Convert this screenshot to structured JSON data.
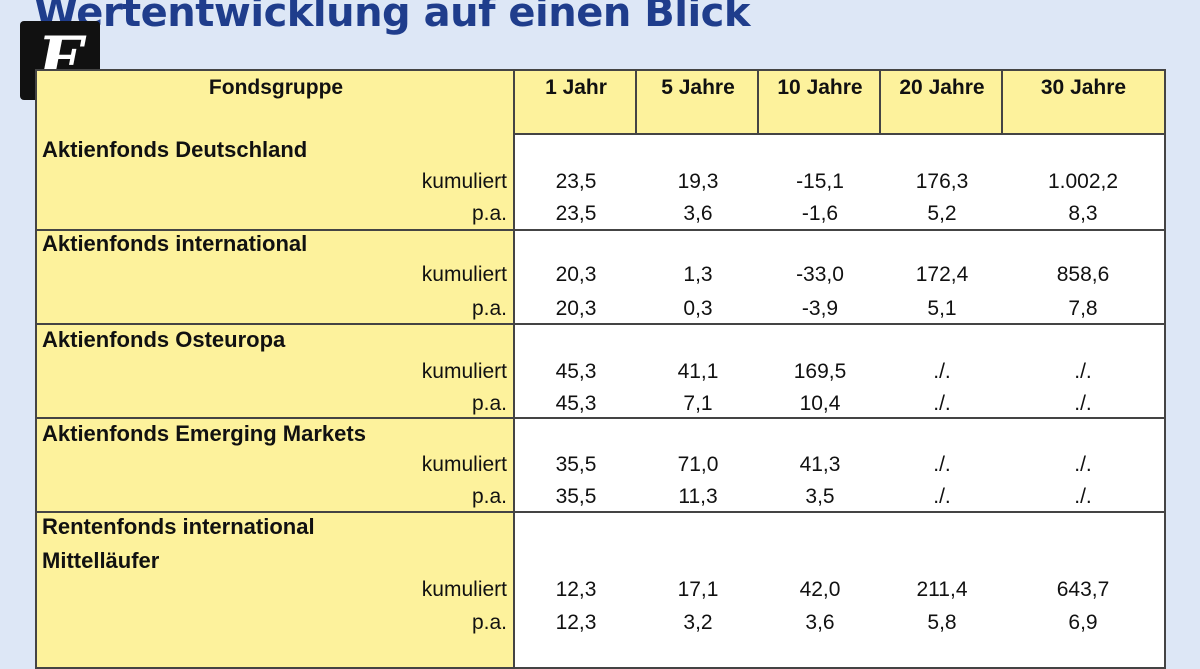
{
  "title": "Wertentwicklung auf einen Blick",
  "logo": {
    "letter": "F"
  },
  "table": {
    "headers": [
      "Fondsgruppe",
      "1 Jahr",
      "5 Jahre",
      "10 Jahre",
      "20 Jahre",
      "30 Jahre"
    ],
    "groups": [
      {
        "name": "Aktienfonds Deutschland",
        "rows": [
          {
            "label": "kumuliert",
            "values": [
              "23,5",
              "19,3",
              "-15,1",
              "176,3",
              "1.002,2"
            ]
          },
          {
            "label": "p.a.",
            "values": [
              "23,5",
              "3,6",
              "-1,6",
              "5,2",
              "8,3"
            ]
          }
        ]
      },
      {
        "name": "Aktienfonds international",
        "rows": [
          {
            "label": "kumuliert",
            "values": [
              "20,3",
              "1,3",
              "-33,0",
              "172,4",
              "858,6"
            ]
          },
          {
            "label": "p.a.",
            "values": [
              "20,3",
              "0,3",
              "-3,9",
              "5,1",
              "7,8"
            ]
          }
        ]
      },
      {
        "name": "Aktienfonds Osteuropa",
        "rows": [
          {
            "label": "kumuliert",
            "values": [
              "45,3",
              "41,1",
              "169,5",
              "./.",
              "./."
            ]
          },
          {
            "label": "p.a.",
            "values": [
              "45,3",
              "7,1",
              "10,4",
              "./.",
              "./."
            ]
          }
        ]
      },
      {
        "name": "Aktienfonds Emerging Markets",
        "rows": [
          {
            "label": "kumuliert",
            "values": [
              "35,5",
              "71,0",
              "41,3",
              "./.",
              "./."
            ]
          },
          {
            "label": "p.a.",
            "values": [
              "35,5",
              "11,3",
              "3,5",
              "./.",
              "./."
            ]
          }
        ]
      },
      {
        "name": "Rentenfonds international",
        "name2": "Mittelläufer",
        "rows": [
          {
            "label": "kumuliert",
            "values": [
              "12,3",
              "17,1",
              "42,0",
              "211,4",
              "643,7"
            ]
          },
          {
            "label": "p.a.",
            "values": [
              "12,3",
              "3,2",
              "3,6",
              "5,8",
              "6,9"
            ]
          }
        ]
      }
    ]
  }
}
